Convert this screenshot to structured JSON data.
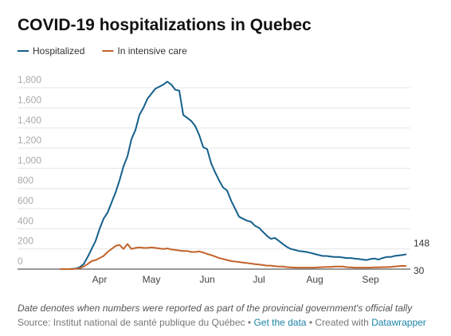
{
  "chart_data": {
    "type": "line",
    "title": "COVID-19 hospitalizations in Quebec",
    "categories": [
      null,
      null,
      null,
      null,
      null,
      null,
      null,
      null,
      null,
      null,
      "Apr",
      null,
      null,
      null,
      null,
      null,
      null,
      null,
      null,
      null,
      null,
      null,
      null,
      "May",
      null,
      null,
      null,
      null,
      null,
      null,
      null,
      null,
      null,
      null,
      null,
      null,
      null,
      "Jun",
      null,
      null,
      null,
      null,
      null,
      null,
      null,
      null,
      null,
      null,
      null,
      null,
      "Jul",
      null,
      null,
      null,
      null,
      null,
      null,
      null,
      null,
      null,
      null,
      null,
      null,
      null,
      "Aug",
      null,
      null,
      null,
      null,
      null,
      null,
      null,
      null,
      null,
      null,
      null,
      null,
      null,
      "Sep",
      null,
      null,
      null,
      null,
      null,
      null,
      null,
      null,
      null
    ],
    "series": [
      {
        "name": "Hospitalized",
        "color": "#15608b",
        "values": [
          0,
          0,
          0,
          2,
          5,
          20,
          50,
          120,
          200,
          280,
          400,
          500,
          560,
          660,
          760,
          880,
          1020,
          1120,
          1290,
          1380,
          1530,
          1600,
          1690,
          1740,
          1790,
          1810,
          1830,
          1860,
          1830,
          1780,
          1770,
          1530,
          1500,
          1470,
          1420,
          1330,
          1210,
          1190,
          1050,
          960,
          880,
          810,
          780,
          680,
          600,
          520,
          500,
          480,
          470,
          430,
          410,
          370,
          330,
          300,
          310,
          280,
          250,
          220,
          200,
          190,
          180,
          175,
          170,
          160,
          150,
          140,
          130,
          130,
          125,
          120,
          120,
          115,
          110,
          110,
          105,
          100,
          95,
          90,
          100,
          105,
          95,
          110,
          120,
          120,
          130,
          135,
          140,
          148
        ]
      },
      {
        "name": "In intensive care",
        "color": "#c3622a",
        "values": [
          0,
          0,
          0,
          0,
          2,
          10,
          25,
          50,
          80,
          90,
          110,
          130,
          170,
          200,
          230,
          240,
          200,
          250,
          200,
          210,
          215,
          210,
          210,
          215,
          210,
          205,
          200,
          205,
          195,
          190,
          185,
          180,
          180,
          170,
          170,
          175,
          165,
          150,
          140,
          125,
          110,
          100,
          90,
          80,
          75,
          70,
          65,
          60,
          55,
          50,
          45,
          40,
          35,
          35,
          30,
          25,
          25,
          20,
          18,
          15,
          15,
          15,
          15,
          15,
          15,
          18,
          20,
          22,
          22,
          25,
          25,
          25,
          20,
          18,
          15,
          15,
          15,
          15,
          15,
          18,
          18,
          20,
          20,
          22,
          25,
          30,
          32,
          30
        ]
      }
    ],
    "ylim": [
      0,
      1880
    ],
    "yticks": [
      0,
      200,
      400,
      600,
      800,
      {
        "value": 1000,
        "label": "1,000"
      },
      {
        "value": 1200,
        "label": "1,200"
      },
      {
        "value": 1400,
        "label": "1,400"
      },
      {
        "value": 1600,
        "label": "1,600"
      },
      {
        "value": 1800,
        "label": "1,800"
      }
    ],
    "grid": true,
    "note": "Date denotes when numbers were reported as part of the provincial government's official tally",
    "footer": [
      "Source: Institut national de santé publique du Québec",
      "•",
      "Get the data",
      "•",
      "Created with",
      "Datawrapper"
    ]
  }
}
